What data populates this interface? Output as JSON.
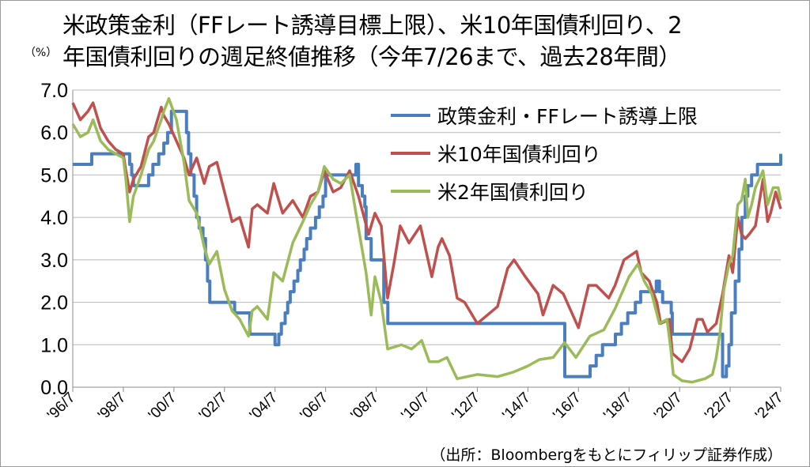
{
  "title_line1": "米政策金利（FFレート誘導目標上限）、米10年国債利回り、2",
  "title_line2": "年国債利回りの週足終値推移（今年7/26まで、過去28年間）",
  "unit": "（%）",
  "source": "（出所：Bloombergをもとにフィリップ証券作成）",
  "chart_data": {
    "type": "line",
    "ylim": [
      0,
      7
    ],
    "yticks": [
      "7.0",
      "6.0",
      "5.0",
      "4.0",
      "3.0",
      "2.0",
      "1.0",
      "0.0"
    ],
    "xlim": [
      "1996-07",
      "2024-07"
    ],
    "xticks": [
      "'96/7",
      "'98/7",
      "'00/7",
      "'02/7",
      "'04/7",
      "'06/7",
      "'08/7",
      "'10/7",
      "'12/7",
      "'14/7",
      "'16/7",
      "'18/7",
      "'20/7",
      "'22/7",
      "'24/7"
    ],
    "legend_position": "top-right",
    "series": [
      {
        "name": "政策金利・FFレート誘導上限",
        "color": "#4a7ebf",
        "x": [
          1996.5,
          1997.25,
          1998.75,
          1998.83,
          1998.9,
          1999.5,
          1999.67,
          1999.9,
          2000.1,
          2000.25,
          2000.4,
          2001.0,
          2001.08,
          2001.17,
          2001.3,
          2001.4,
          2001.5,
          2001.65,
          2001.75,
          2001.83,
          2001.92,
          2002.9,
          2003.5,
          2004.5,
          2004.65,
          2004.75,
          2004.9,
          2005.0,
          2005.1,
          2005.25,
          2005.4,
          2005.5,
          2005.65,
          2005.75,
          2005.9,
          2006.1,
          2006.25,
          2006.4,
          2006.5,
          2007.7,
          2007.8,
          2007.95,
          2008.05,
          2008.1,
          2008.3,
          2008.8,
          2008.96,
          2015.96,
          2016.96,
          2017.2,
          2017.45,
          2017.96,
          2018.2,
          2018.45,
          2018.75,
          2018.96,
          2019.58,
          2019.7,
          2019.83,
          2020.17,
          2020.21,
          2022.2,
          2022.35,
          2022.45,
          2022.55,
          2022.7,
          2022.85,
          2022.96,
          2023.1,
          2023.2,
          2023.35,
          2023.58,
          2024.5
        ],
        "values": [
          5.25,
          5.5,
          5.25,
          5.0,
          4.75,
          5.0,
          5.25,
          5.5,
          5.75,
          6.0,
          6.5,
          6.0,
          5.5,
          5.0,
          4.5,
          4.0,
          3.75,
          3.5,
          3.0,
          2.5,
          2.0,
          1.75,
          1.25,
          1.0,
          1.25,
          1.5,
          1.75,
          2.0,
          2.25,
          2.5,
          2.75,
          3.0,
          3.25,
          3.5,
          3.75,
          4.0,
          4.25,
          4.5,
          5.0,
          5.25,
          4.75,
          4.5,
          4.25,
          3.5,
          3.0,
          2.0,
          1.5,
          0.25,
          0.5,
          0.75,
          1.0,
          1.25,
          1.5,
          1.75,
          2.0,
          2.25,
          2.5,
          2.25,
          2.0,
          1.75,
          1.25,
          0.25,
          0.5,
          1.0,
          1.75,
          2.5,
          3.25,
          4.0,
          4.5,
          4.75,
          5.0,
          5.25,
          5.5
        ]
      },
      {
        "name": "米10年国債利回り",
        "color": "#c0504d",
        "x": [
          1996.5,
          1996.8,
          1997.1,
          1997.3,
          1997.6,
          1997.9,
          1998.2,
          1998.5,
          1998.6,
          1998.75,
          1998.9,
          1999.2,
          1999.5,
          1999.7,
          2000.0,
          2000.1,
          2000.3,
          2000.6,
          2000.9,
          2001.1,
          2001.4,
          2001.7,
          2001.9,
          2002.2,
          2002.5,
          2002.8,
          2003.1,
          2003.45,
          2003.6,
          2003.8,
          2004.2,
          2004.45,
          2004.8,
          2005.2,
          2005.6,
          2005.9,
          2006.2,
          2006.45,
          2006.8,
          2007.1,
          2007.45,
          2007.8,
          2008.2,
          2008.45,
          2008.7,
          2008.95,
          2009.2,
          2009.45,
          2009.8,
          2010.25,
          2010.7,
          2010.95,
          2011.1,
          2011.4,
          2011.7,
          2012.0,
          2012.5,
          2012.9,
          2013.3,
          2013.7,
          2013.95,
          2014.4,
          2014.9,
          2015.1,
          2015.5,
          2015.9,
          2016.2,
          2016.5,
          2016.9,
          2017.2,
          2017.7,
          2017.95,
          2018.3,
          2018.8,
          2018.98,
          2019.3,
          2019.6,
          2019.75,
          2020.1,
          2020.21,
          2020.4,
          2020.6,
          2020.9,
          2021.2,
          2021.4,
          2021.6,
          2021.95,
          2022.2,
          2022.45,
          2022.6,
          2022.8,
          2022.95,
          2023.1,
          2023.25,
          2023.5,
          2023.8,
          2023.98,
          2024.1,
          2024.3,
          2024.5
        ],
        "values": [
          6.7,
          6.3,
          6.5,
          6.7,
          6.1,
          5.8,
          5.6,
          5.5,
          5.1,
          4.6,
          4.9,
          5.2,
          5.9,
          6.0,
          6.6,
          6.4,
          6.2,
          5.8,
          5.4,
          5.0,
          5.4,
          4.8,
          5.2,
          5.3,
          4.6,
          3.9,
          4.0,
          3.3,
          4.2,
          4.3,
          4.1,
          4.8,
          4.1,
          4.4,
          4.0,
          4.5,
          4.6,
          5.1,
          4.6,
          4.7,
          5.1,
          4.5,
          3.6,
          4.1,
          3.8,
          2.1,
          2.9,
          3.8,
          3.4,
          3.8,
          2.6,
          3.3,
          3.5,
          3.1,
          2.1,
          2.0,
          1.5,
          1.7,
          1.9,
          2.8,
          3.0,
          2.6,
          2.2,
          1.7,
          2.4,
          2.2,
          1.8,
          1.4,
          2.4,
          2.4,
          2.1,
          2.4,
          3.0,
          3.2,
          2.7,
          2.5,
          2.0,
          1.5,
          1.6,
          0.8,
          0.7,
          0.6,
          0.9,
          1.6,
          1.6,
          1.3,
          1.5,
          2.2,
          3.1,
          2.7,
          4.0,
          3.6,
          3.5,
          3.6,
          3.8,
          4.9,
          3.9,
          4.1,
          4.6,
          4.2
        ]
      },
      {
        "name": "米2年国債利回り",
        "color": "#9bbb59",
        "x": [
          1996.5,
          1996.8,
          1997.1,
          1997.3,
          1997.6,
          1997.9,
          1998.2,
          1998.5,
          1998.6,
          1998.75,
          1998.9,
          1999.2,
          1999.5,
          1999.7,
          2000.0,
          2000.1,
          2000.3,
          2000.6,
          2000.9,
          2001.1,
          2001.4,
          2001.7,
          2001.9,
          2002.2,
          2002.5,
          2002.8,
          2003.1,
          2003.45,
          2003.6,
          2003.8,
          2004.2,
          2004.45,
          2004.8,
          2005.2,
          2005.6,
          2005.9,
          2006.2,
          2006.45,
          2006.8,
          2007.1,
          2007.45,
          2007.7,
          2007.9,
          2008.1,
          2008.3,
          2008.45,
          2008.7,
          2008.95,
          2009.5,
          2009.9,
          2010.3,
          2010.6,
          2010.95,
          2011.3,
          2011.7,
          2012.5,
          2013.3,
          2013.9,
          2014.5,
          2014.95,
          2015.5,
          2015.95,
          2016.4,
          2016.95,
          2017.5,
          2017.95,
          2018.5,
          2018.85,
          2019.1,
          2019.4,
          2019.7,
          2020.0,
          2020.15,
          2020.25,
          2020.6,
          2021.0,
          2021.5,
          2021.8,
          2021.95,
          2022.1,
          2022.25,
          2022.45,
          2022.6,
          2022.8,
          2022.95,
          2023.1,
          2023.2,
          2023.35,
          2023.5,
          2023.8,
          2023.98,
          2024.2,
          2024.4,
          2024.5
        ],
        "values": [
          6.2,
          5.9,
          6.0,
          6.3,
          5.8,
          5.6,
          5.5,
          5.4,
          4.9,
          3.9,
          4.5,
          5.0,
          5.6,
          5.8,
          6.3,
          6.5,
          6.8,
          6.3,
          5.3,
          4.4,
          4.1,
          3.3,
          2.9,
          3.2,
          2.3,
          1.8,
          1.6,
          1.2,
          1.8,
          1.9,
          1.6,
          2.7,
          2.5,
          3.4,
          3.9,
          4.3,
          4.6,
          5.2,
          4.9,
          4.8,
          5.0,
          4.1,
          3.4,
          2.7,
          1.7,
          2.6,
          2.0,
          0.9,
          1.0,
          0.9,
          1.1,
          0.6,
          0.6,
          0.7,
          0.2,
          0.3,
          0.25,
          0.35,
          0.5,
          0.65,
          0.7,
          1.05,
          0.7,
          1.2,
          1.35,
          1.85,
          2.6,
          2.9,
          2.5,
          2.2,
          1.5,
          1.6,
          0.9,
          0.3,
          0.15,
          0.12,
          0.2,
          0.3,
          0.7,
          1.3,
          2.3,
          2.9,
          3.1,
          4.3,
          4.4,
          4.9,
          4.0,
          4.3,
          4.7,
          5.1,
          4.3,
          4.7,
          4.7,
          4.4
        ]
      }
    ]
  }
}
